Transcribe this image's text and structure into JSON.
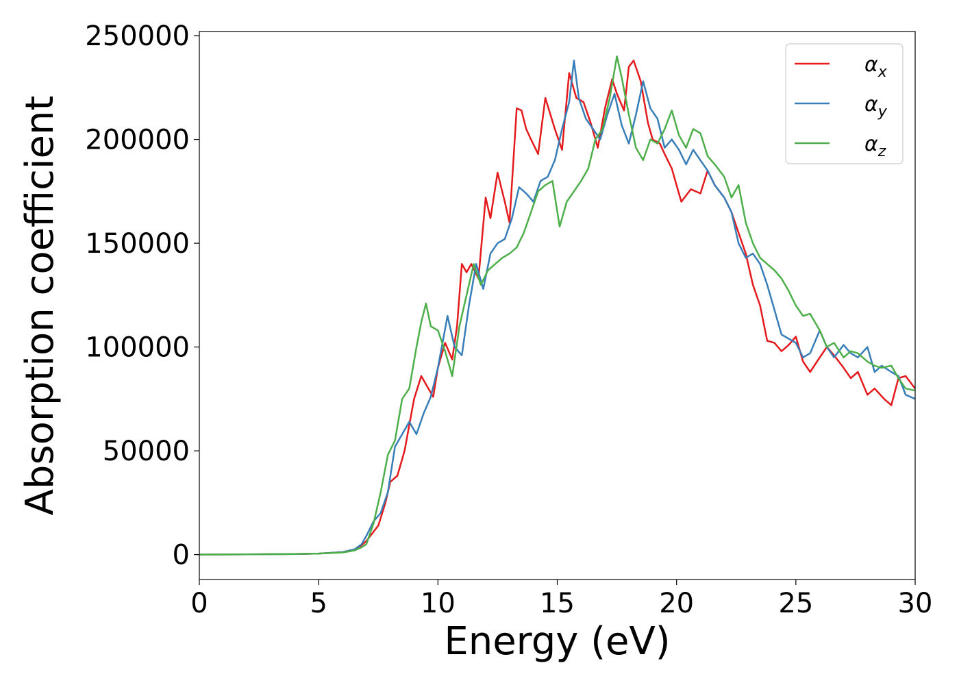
{
  "chart_data": {
    "type": "line",
    "title": "",
    "xlabel": "Energy (eV)",
    "ylabel": "Absorption coefficient",
    "xlim": [
      0,
      30
    ],
    "ylim": [
      -12000,
      252000
    ],
    "xticks": [
      0,
      5,
      10,
      15,
      20,
      25,
      30
    ],
    "xtick_labels": [
      "0",
      "5",
      "10",
      "15",
      "20",
      "25",
      "30"
    ],
    "yticks": [
      0,
      50000,
      100000,
      150000,
      200000,
      250000
    ],
    "ytick_labels": [
      "0",
      "50000",
      "100000",
      "150000",
      "200000",
      "250000"
    ],
    "grid": false,
    "legend_position": "top-right",
    "series": [
      {
        "name": "α_x",
        "label_main": "α",
        "label_sub": "x",
        "color": "#e41a1c",
        "x": [
          0,
          2,
          4,
          5,
          6,
          6.5,
          6.8,
          7,
          7.5,
          7.8,
          8,
          8.3,
          8.6,
          9,
          9.3,
          9.6,
          9.8,
          10,
          10.3,
          10.6,
          10.8,
          11,
          11.2,
          11.4,
          11.7,
          12,
          12.2,
          12.5,
          12.8,
          13,
          13.3,
          13.5,
          13.7,
          13.9,
          14.2,
          14.5,
          14.9,
          15.2,
          15.5,
          15.8,
          16.1,
          16.4,
          16.7,
          17,
          17.3,
          17.5,
          17.8,
          18,
          18.2,
          18.5,
          18.8,
          19,
          19.3,
          19.5,
          19.8,
          20.2,
          20.6,
          21,
          21.3,
          21.6,
          22,
          22.3,
          22.6,
          22.9,
          23.2,
          23.5,
          23.8,
          24.1,
          24.4,
          24.7,
          25,
          25.3,
          25.6,
          26,
          26.3,
          26.6,
          27,
          27.3,
          27.6,
          28,
          28.3,
          28.7,
          29,
          29.3,
          29.6,
          30
        ],
        "y": [
          0,
          100,
          300,
          500,
          1200,
          2500,
          4500,
          6500,
          14000,
          25000,
          35000,
          38000,
          50000,
          75000,
          86000,
          80000,
          76000,
          90000,
          102000,
          94000,
          110000,
          140000,
          136000,
          140000,
          133000,
          172000,
          162000,
          184000,
          170000,
          160000,
          215000,
          214000,
          205000,
          200000,
          193000,
          220000,
          205000,
          195000,
          232000,
          220000,
          218000,
          208000,
          196000,
          215000,
          229000,
          222000,
          214000,
          235000,
          238000,
          228000,
          208000,
          200000,
          198000,
          193000,
          186000,
          170000,
          176000,
          174000,
          185000,
          178000,
          172000,
          165000,
          155000,
          145000,
          130000,
          120000,
          103000,
          102000,
          98000,
          101000,
          105000,
          93000,
          88000,
          95000,
          100000,
          96000,
          90000,
          85000,
          88000,
          77000,
          80000,
          75000,
          72000,
          85000,
          86000,
          80000
        ]
      },
      {
        "name": "α_y",
        "label_main": "α",
        "label_sub": "y",
        "color": "#377eb8",
        "x": [
          0,
          2,
          4,
          5,
          6,
          6.5,
          6.8,
          7,
          7.3,
          7.6,
          7.9,
          8.2,
          8.5,
          8.8,
          9.1,
          9.4,
          9.7,
          10,
          10.4,
          10.7,
          11,
          11.3,
          11.6,
          11.9,
          12.2,
          12.5,
          12.8,
          13.1,
          13.4,
          13.7,
          14,
          14.3,
          14.6,
          14.9,
          15.2,
          15.5,
          15.7,
          15.9,
          16.2,
          16.5,
          16.8,
          17.1,
          17.4,
          17.7,
          18,
          18.3,
          18.6,
          18.9,
          19.2,
          19.5,
          19.8,
          20.1,
          20.4,
          20.7,
          21,
          21.3,
          21.6,
          22,
          22.3,
          22.6,
          22.9,
          23.2,
          23.5,
          23.8,
          24.1,
          24.4,
          24.7,
          25,
          25.3,
          25.6,
          26,
          26.3,
          26.6,
          27,
          27.3,
          27.6,
          28,
          28.3,
          28.6,
          29,
          29.3,
          29.6,
          30
        ],
        "y": [
          0,
          100,
          300,
          500,
          1200,
          2500,
          5000,
          9000,
          16000,
          20000,
          30000,
          52000,
          58000,
          64000,
          58000,
          68000,
          76000,
          90000,
          115000,
          100000,
          96000,
          120000,
          140000,
          128000,
          145000,
          150000,
          152000,
          162000,
          177000,
          174000,
          170000,
          180000,
          182000,
          190000,
          205000,
          218000,
          238000,
          220000,
          210000,
          205000,
          200000,
          212000,
          222000,
          207000,
          198000,
          212000,
          228000,
          215000,
          210000,
          196000,
          200000,
          195000,
          188000,
          195000,
          190000,
          185000,
          178000,
          172000,
          165000,
          150000,
          143000,
          145000,
          140000,
          130000,
          118000,
          106000,
          104000,
          102000,
          95000,
          97000,
          108000,
          100000,
          95000,
          101000,
          97000,
          95000,
          100000,
          88000,
          91000,
          88000,
          86000,
          77000,
          75000
        ]
      },
      {
        "name": "α_z",
        "label_main": "α",
        "label_sub": "z",
        "color": "#4daf4a",
        "x": [
          0,
          2,
          4,
          5,
          6,
          6.5,
          6.8,
          7,
          7.3,
          7.6,
          7.9,
          8.2,
          8.5,
          8.8,
          9.1,
          9.3,
          9.5,
          9.7,
          10,
          10.3,
          10.6,
          10.9,
          11.2,
          11.5,
          11.8,
          12.1,
          12.4,
          12.7,
          13,
          13.3,
          13.6,
          13.9,
          14.2,
          14.5,
          14.8,
          15.1,
          15.4,
          15.7,
          16,
          16.3,
          16.6,
          16.9,
          17.2,
          17.5,
          17.7,
          18,
          18.3,
          18.6,
          18.9,
          19.2,
          19.5,
          19.8,
          20.1,
          20.4,
          20.7,
          21,
          21.3,
          21.6,
          22,
          22.3,
          22.6,
          22.9,
          23.2,
          23.5,
          23.8,
          24.1,
          24.4,
          24.7,
          25,
          25.3,
          25.6,
          26,
          26.3,
          26.6,
          27,
          27.3,
          27.6,
          28,
          28.3,
          28.6,
          29,
          29.3,
          29.6,
          30
        ],
        "y": [
          0,
          100,
          300,
          500,
          1000,
          2000,
          3500,
          5000,
          15000,
          30000,
          48000,
          55000,
          75000,
          80000,
          100000,
          112000,
          121000,
          110000,
          108000,
          98000,
          86000,
          110000,
          125000,
          140000,
          130000,
          137000,
          140000,
          143000,
          145000,
          148000,
          155000,
          165000,
          175000,
          178000,
          180000,
          158000,
          170000,
          175000,
          180000,
          186000,
          200000,
          205000,
          220000,
          240000,
          230000,
          212000,
          196000,
          190000,
          200000,
          198000,
          205000,
          214000,
          202000,
          196000,
          205000,
          203000,
          192000,
          188000,
          182000,
          172000,
          178000,
          160000,
          150000,
          143000,
          140000,
          137000,
          133000,
          127000,
          120000,
          115000,
          116000,
          108000,
          100000,
          102000,
          95000,
          98000,
          97000,
          93000,
          91000,
          90000,
          91000,
          85000,
          80000,
          79000
        ]
      }
    ]
  }
}
